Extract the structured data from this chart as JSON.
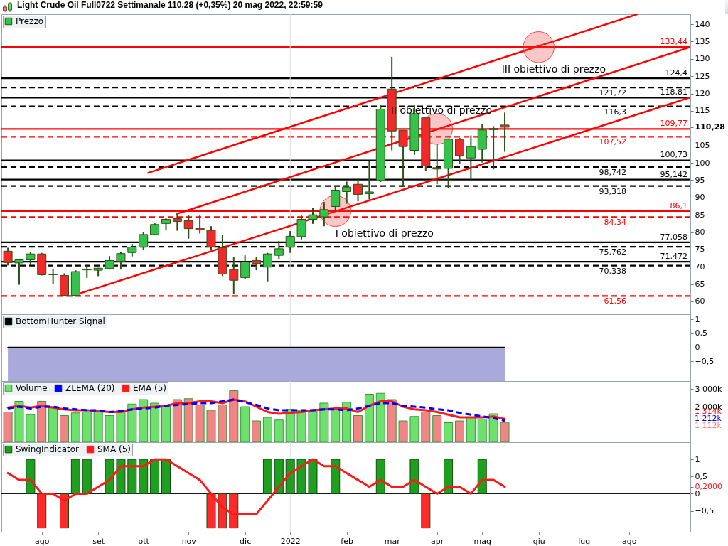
{
  "chart_data": [
    {
      "type": "candlestick",
      "title": "Light Crude Oil Full0722 Settimanale 110,28 (+0,35%) 20 mag 2022, 22:59:59",
      "x": [
        "2021-07-12",
        "2021-07-19",
        "2021-07-26",
        "2021-08-02",
        "2021-08-09",
        "2021-08-16",
        "2021-08-23",
        "2021-08-30",
        "2021-09-06",
        "2021-09-13",
        "2021-09-20",
        "2021-09-27",
        "2021-10-04",
        "2021-10-11",
        "2021-10-18",
        "2021-10-25",
        "2021-11-01",
        "2021-11-08",
        "2021-11-15",
        "2021-11-22",
        "2021-11-29",
        "2021-12-06",
        "2021-12-13",
        "2021-12-20",
        "2021-12-27",
        "2022-01-03",
        "2022-01-10",
        "2022-01-17",
        "2022-01-24",
        "2022-01-31",
        "2022-02-07",
        "2022-02-14",
        "2022-02-21",
        "2022-02-28",
        "2022-03-07",
        "2022-03-14",
        "2022-03-21",
        "2022-03-28",
        "2022-04-04",
        "2022-04-11",
        "2022-04-18",
        "2022-04-25",
        "2022-05-02",
        "2022-05-09",
        "2022-05-16"
      ],
      "series": [
        {
          "name": "Prezzo",
          "color": "#2a5216",
          "ohlc": [
            [
              74.5,
              75.5,
              70.4,
              71.2
            ],
            [
              71.1,
              72.1,
              64.8,
              72.0
            ],
            [
              72.0,
              74.2,
              70.4,
              73.7
            ],
            [
              73.7,
              74.0,
              67.5,
              67.7
            ],
            [
              67.7,
              69.4,
              64.9,
              67.9
            ],
            [
              67.5,
              68.1,
              61.56,
              61.7
            ],
            [
              61.7,
              69.0,
              61.6,
              68.6
            ],
            [
              69.1,
              70.4,
              66.8,
              69.3
            ],
            [
              69.0,
              69.7,
              67.3,
              69.6
            ],
            [
              69.5,
              73.1,
              69.2,
              71.8
            ],
            [
              71.6,
              74.2,
              69.2,
              73.8
            ],
            [
              74.1,
              76.6,
              73.0,
              75.7
            ],
            [
              75.7,
              80.1,
              74.8,
              79.3
            ],
            [
              79.3,
              82.6,
              79.2,
              82.2
            ],
            [
              82.5,
              84.1,
              80.7,
              83.7
            ],
            [
              83.9,
              85.3,
              80.4,
              83.1
            ],
            [
              83.3,
              84.8,
              78.1,
              81.0
            ],
            [
              81.1,
              84.8,
              79.6,
              80.7
            ],
            [
              80.5,
              81.7,
              74.8,
              75.7
            ],
            [
              75.5,
              79.1,
              67.3,
              67.9
            ],
            [
              69.2,
              72.9,
              62.1,
              66.1
            ],
            [
              66.9,
              73.3,
              66.4,
              71.4
            ],
            [
              71.8,
              72.9,
              69.0,
              70.9
            ],
            [
              69.9,
              74.0,
              65.8,
              73.7
            ],
            [
              73.3,
              77.4,
              72.3,
              75.2
            ],
            [
              75.7,
              80.3,
              74.0,
              78.8
            ],
            [
              78.7,
              84.8,
              77.9,
              83.7
            ],
            [
              83.7,
              87.0,
              82.4,
              85.0
            ],
            [
              84.4,
              88.7,
              81.7,
              86.5
            ],
            [
              87.4,
              93.1,
              86.1,
              92.1
            ],
            [
              91.7,
              94.6,
              88.2,
              93.0
            ],
            [
              93.8,
              95.6,
              88.9,
              90.9
            ],
            [
              91.1,
              100.5,
              89.4,
              91.6
            ],
            [
              94.9,
              116.6,
              94.5,
              115.5
            ],
            [
              121.3,
              130.6,
              103.6,
              109.2
            ],
            [
              109.4,
              109.4,
              93.3,
              104.7
            ],
            [
              103.6,
              116.6,
              102.3,
              114.2
            ],
            [
              113.0,
              113.0,
              97.7,
              99.1
            ],
            [
              98.6,
              105.3,
              93.8,
              98.2
            ],
            [
              98.4,
              107.0,
              92.8,
              106.8
            ],
            [
              106.8,
              107.2,
              99.7,
              102.1
            ],
            [
              101.4,
              107.9,
              95.1,
              104.7
            ],
            [
              103.9,
              111.3,
              100.1,
              109.5
            ],
            [
              109.6,
              110.6,
              98.1,
              109.9
            ],
            [
              110.9,
              114.5,
              103.2,
              110.28
            ]
          ],
          "colors": [
            "#f02a2a",
            "#34c24a",
            "#34c24a",
            "#f02a2a",
            "#34c24a",
            "#f02a2a",
            "#34c24a",
            "#34c24a",
            "#34c24a",
            "#34c24a",
            "#34c24a",
            "#34c24a",
            "#34c24a",
            "#34c24a",
            "#34c24a",
            "#f02a2a",
            "#f02a2a",
            "#f02a2a",
            "#f02a2a",
            "#f02a2a",
            "#f02a2a",
            "#34c24a",
            "#f02a2a",
            "#34c24a",
            "#34c24a",
            "#34c24a",
            "#34c24a",
            "#34c24a",
            "#34c24a",
            "#34c24a",
            "#34c24a",
            "#f02a2a",
            "#34c24a",
            "#34c24a",
            "#f02a2a",
            "#f02a2a",
            "#34c24a",
            "#f02a2a",
            "#f02a2a",
            "#34c24a",
            "#f02a2a",
            "#34c24a",
            "#34c24a",
            "#34c24a",
            "#f02a2a"
          ]
        },
        {
          "type": "line",
          "x": [
            "2021-08-21",
            "2022-09-08"
          ],
          "values": [
            61.6,
            118.9
          ],
          "color": "#ff0000"
        },
        {
          "type": "line",
          "x": [
            "2021-10-25",
            "2022-09-08"
          ],
          "values": [
            85.3,
            133.4
          ],
          "color": "#ff0000"
        },
        {
          "type": "line",
          "x": [
            "2021-10-07",
            "2022-08-06"
          ],
          "values": [
            97.1,
            142.9
          ],
          "color": "#ff0000"
        },
        {
          "type": "scatter",
          "x": [
            "2022-01-31",
            "2022-04-04",
            "2022-06-06"
          ],
          "values": [
            86.1,
            109.8,
            133.4
          ],
          "color": "#ee3333",
          "marker": "circle"
        }
      ],
      "xlim": [
        "2021-07-08",
        "2022-09-08"
      ],
      "ylim": [
        56.3,
        142.9
      ],
      "yticks": [
        60,
        65,
        70,
        75,
        80,
        85,
        90,
        95,
        100,
        105,
        {
          "value": 110.28,
          "label": "110,28"
        },
        115,
        120,
        125,
        130,
        135,
        140
      ],
      "tick_labels": "y",
      "legend": "top left",
      "ref_lines": [
        {
          "axis": "y",
          "value": 133.44,
          "label": "133,44",
          "color": "#ff0000",
          "line_style": "solid"
        },
        {
          "axis": "y",
          "value": 124.4,
          "label": "124,4",
          "color": "#000000",
          "line_style": "solid"
        },
        {
          "axis": "y",
          "value": 121.72,
          "label": "121,72",
          "color": "#000000",
          "line_style": "dashed"
        },
        {
          "axis": "y",
          "value": 118.81,
          "label": "118,81",
          "color": "#000000",
          "line_style": "solid"
        },
        {
          "axis": "y",
          "value": 116.3,
          "label": "116,3",
          "color": "#000000",
          "line_style": "dashed"
        },
        {
          "axis": "y",
          "value": 109.77,
          "label": "109,77",
          "color": "#ff0000",
          "line_style": "solid"
        },
        {
          "axis": "y",
          "value": 107.52,
          "label": "107,52",
          "color": "#ff0000",
          "line_style": "dashed"
        },
        {
          "axis": "y",
          "value": 100.73,
          "label": "100,73",
          "color": "#000000",
          "line_style": "solid"
        },
        {
          "axis": "y",
          "value": 98.742,
          "label": "98,742",
          "color": "#000000",
          "line_style": "dashed"
        },
        {
          "axis": "y",
          "value": 95.142,
          "label": "95,142",
          "color": "#000000",
          "line_style": "solid"
        },
        {
          "axis": "y",
          "value": 93.318,
          "label": "93,318",
          "color": "#000000",
          "line_style": "dashed"
        },
        {
          "axis": "y",
          "value": 86.1,
          "label": "86,1",
          "color": "#ff0000",
          "line_style": "solid"
        },
        {
          "axis": "y",
          "value": 84.34,
          "label": "84,34",
          "color": "#ff0000",
          "line_style": "dashed"
        },
        {
          "axis": "y",
          "value": 77.058,
          "label": "77,058",
          "color": "#000000",
          "line_style": "solid"
        },
        {
          "axis": "y",
          "value": 75.762,
          "label": "75,762",
          "color": "#000000",
          "line_style": "dashed"
        },
        {
          "axis": "y",
          "value": 71.472,
          "label": "71,472",
          "color": "#000000",
          "line_style": "solid"
        },
        {
          "axis": "y",
          "value": 70.338,
          "label": "70,338",
          "color": "#000000",
          "line_style": "dashed"
        },
        {
          "axis": "y",
          "value": 61.56,
          "label": "61,56",
          "color": "#ff0000",
          "line_style": "dashed"
        },
        {
          "axis": "x",
          "value": "2022-01-03",
          "color": "#dddddd"
        }
      ],
      "annotations": [
        {
          "text": "I obiettivo di prezzo",
          "x": "2022-01-31",
          "y": 86.1
        },
        {
          "text": "II obiettivo di prezzo",
          "x": "2022-04-04",
          "y": 109.8
        },
        {
          "text": "III obiettivo di prezzo",
          "x": "2022-06-06",
          "y": 133.4
        }
      ]
    },
    {
      "type": "line",
      "x": [
        "2021-07-12",
        "2021-07-19",
        "2021-07-26",
        "2021-08-02",
        "2021-08-09",
        "2021-08-16",
        "2021-08-23",
        "2021-08-30",
        "2021-09-06",
        "2021-09-13",
        "2021-09-20",
        "2021-09-27",
        "2021-10-04",
        "2021-10-11",
        "2021-10-18",
        "2021-10-25",
        "2021-11-01",
        "2021-11-08",
        "2021-11-15",
        "2021-11-22",
        "2021-11-29",
        "2021-12-06",
        "2021-12-13",
        "2021-12-20",
        "2021-12-27",
        "2022-01-03",
        "2022-01-10",
        "2022-01-17",
        "2022-01-24",
        "2022-01-31",
        "2022-02-07",
        "2022-02-14",
        "2022-02-21",
        "2022-02-28",
        "2022-03-07",
        "2022-03-14",
        "2022-03-21",
        "2022-03-28",
        "2022-04-04",
        "2022-04-11",
        "2022-04-18",
        "2022-04-25",
        "2022-05-02",
        "2022-05-09",
        "2022-05-16"
      ],
      "series": [
        {
          "name": "BottomHunter Signal",
          "color": "#000000",
          "values": [
            0,
            0,
            0,
            0,
            0,
            0,
            0,
            0,
            0,
            0,
            0,
            0,
            0,
            0,
            0,
            0,
            0,
            0,
            0,
            0,
            0,
            0,
            0,
            0,
            0,
            0,
            0,
            0,
            0,
            0,
            0,
            0,
            0,
            0,
            0,
            0,
            0,
            0,
            0,
            0,
            0,
            0,
            0,
            0,
            0
          ],
          "lower": [
            -1.2,
            -1.2,
            -1.2,
            -1.2,
            -1.2,
            -1.2,
            -1.2,
            -1.2,
            -1.2,
            -1.2,
            -1.2,
            -1.2,
            -1.2,
            -1.2,
            -1.2,
            -1.2,
            -1.2,
            -1.2,
            -1.2,
            -1.2,
            -1.2,
            -1.2,
            -1.2,
            -1.2,
            -1.2,
            -1.2,
            -1.2,
            -1.2,
            -1.2,
            -1.2,
            -1.2,
            -1.2,
            -1.2,
            -1.2,
            -1.2,
            -1.2,
            -1.2,
            -1.2,
            -1.2,
            -1.2,
            -1.2,
            -1.2,
            -1.2,
            -1.2,
            -1.2
          ],
          "upper": [
            0,
            0,
            0,
            0,
            0,
            0,
            0,
            0,
            0,
            0,
            0,
            0,
            0,
            0,
            0,
            0,
            0,
            0,
            0,
            0,
            0,
            0,
            0,
            0,
            0,
            0,
            0,
            0,
            0,
            0,
            0,
            0,
            0,
            0,
            0,
            0,
            0,
            0,
            0,
            0,
            0,
            0,
            0,
            0,
            0
          ]
        }
      ],
      "xlim": [
        "2021-07-08",
        "2022-09-08"
      ],
      "ylim": [
        -1.2,
        1.18
      ],
      "yticks": [
        1,
        {
          "value": 0.5,
          "label": "0,5"
        },
        0,
        {
          "value": -0.5,
          "label": "−0,5"
        }
      ],
      "tick_labels": "y",
      "legend": "top left",
      "ref_lines": [
        {
          "axis": "x",
          "value": "2022-01-03",
          "color": "#dddddd"
        }
      ]
    },
    {
      "type": "bar",
      "x": [
        "2021-07-12",
        "2021-07-19",
        "2021-07-26",
        "2021-08-02",
        "2021-08-09",
        "2021-08-16",
        "2021-08-23",
        "2021-08-30",
        "2021-09-06",
        "2021-09-13",
        "2021-09-20",
        "2021-09-27",
        "2021-10-04",
        "2021-10-11",
        "2021-10-18",
        "2021-10-25",
        "2021-11-01",
        "2021-11-08",
        "2021-11-15",
        "2021-11-22",
        "2021-11-29",
        "2021-12-06",
        "2021-12-13",
        "2021-12-20",
        "2021-12-27",
        "2022-01-03",
        "2022-01-10",
        "2022-01-17",
        "2022-01-24",
        "2022-01-31",
        "2022-02-07",
        "2022-02-14",
        "2022-02-21",
        "2022-02-28",
        "2022-03-07",
        "2022-03-14",
        "2022-03-21",
        "2022-03-28",
        "2022-04-04",
        "2022-04-11",
        "2022-04-18",
        "2022-04-25",
        "2022-05-02",
        "2022-05-09",
        "2022-05-16"
      ],
      "series": [
        {
          "name": "Volume",
          "color": "#3a9a3a",
          "values": [
            1700,
            2300,
            1550,
            2300,
            2000,
            1500,
            1650,
            1700,
            1800,
            1500,
            1800,
            2150,
            2400,
            2200,
            2100,
            2400,
            2450,
            2100,
            1800,
            2100,
            2900,
            2000,
            1200,
            1400,
            1250,
            1850,
            1800,
            1800,
            2200,
            1900,
            2250,
            1500,
            2700,
            2750,
            2400,
            1200,
            1450,
            1700,
            1500,
            1100,
            1200,
            1400,
            1300,
            1600,
            1112
          ],
          "colors": [
            "#f08585",
            "#6ee06e",
            "#6ee06e",
            "#f08585",
            "#6ee06e",
            "#f08585",
            "#6ee06e",
            "#6ee06e",
            "#6ee06e",
            "#6ee06e",
            "#6ee06e",
            "#6ee06e",
            "#6ee06e",
            "#6ee06e",
            "#6ee06e",
            "#f08585",
            "#f08585",
            "#f08585",
            "#f08585",
            "#f08585",
            "#f08585",
            "#6ee06e",
            "#f08585",
            "#6ee06e",
            "#6ee06e",
            "#6ee06e",
            "#6ee06e",
            "#6ee06e",
            "#6ee06e",
            "#6ee06e",
            "#6ee06e",
            "#f08585",
            "#6ee06e",
            "#6ee06e",
            "#f08585",
            "#f08585",
            "#6ee06e",
            "#f08585",
            "#f08585",
            "#6ee06e",
            "#f08585",
            "#6ee06e",
            "#6ee06e",
            "#6ee06e",
            "#f08585"
          ]
        },
        {
          "name": "ZLEMA (20)",
          "type": "line",
          "color": "#0000ff",
          "line_style": "dashed",
          "values": [
            1900,
            2000,
            1900,
            2000,
            2000,
            1900,
            1850,
            1800,
            1800,
            1700,
            1750,
            1850,
            1900,
            1950,
            2050,
            2100,
            2150,
            2200,
            2200,
            2300,
            2400,
            2250,
            2100,
            1900,
            1800,
            1800,
            1800,
            1800,
            1850,
            1850,
            1800,
            1900,
            2050,
            2200,
            2200,
            2050,
            2000,
            1950,
            1850,
            1800,
            1650,
            1550,
            1450,
            1350,
            1212
          ]
        },
        {
          "name": "EMA (5)",
          "type": "line",
          "color": "#ff1a1a",
          "values": [
            1950,
            2050,
            1950,
            2050,
            1950,
            1850,
            1800,
            1800,
            1750,
            1700,
            1700,
            1850,
            1950,
            2000,
            2050,
            2200,
            2200,
            2300,
            2300,
            2200,
            2400,
            2300,
            2000,
            1700,
            1600,
            1650,
            1700,
            1800,
            1850,
            1900,
            1900,
            1700,
            2050,
            2300,
            2300,
            2000,
            1850,
            1800,
            1700,
            1550,
            1400,
            1400,
            1400,
            1450,
            1314
          ]
        }
      ],
      "xlim": [
        "2021-07-08",
        "2022-09-08"
      ],
      "ylim": [
        0,
        3440
      ],
      "yticks": [
        {
          "value": 3000,
          "label": "3 000k"
        },
        {
          "value": 2000,
          "label": "2 000k"
        }
      ],
      "tick_labels": "y",
      "legend": "top left",
      "ref_lines": [
        {
          "axis": "x",
          "value": "2022-01-03",
          "color": "#dddddd"
        }
      ],
      "annotations": [
        "1 314k",
        "1 212k",
        "1 112k"
      ]
    },
    {
      "type": "bar",
      "x": [
        "2021-07-12",
        "2021-07-19",
        "2021-07-26",
        "2021-08-02",
        "2021-08-09",
        "2021-08-16",
        "2021-08-23",
        "2021-08-30",
        "2021-09-06",
        "2021-09-13",
        "2021-09-20",
        "2021-09-27",
        "2021-10-04",
        "2021-10-11",
        "2021-10-18",
        "2021-10-25",
        "2021-11-01",
        "2021-11-08",
        "2021-11-15",
        "2021-11-22",
        "2021-11-29",
        "2021-12-06",
        "2021-12-13",
        "2021-12-20",
        "2021-12-27",
        "2022-01-03",
        "2022-01-10",
        "2022-01-17",
        "2022-01-24",
        "2022-01-31",
        "2022-02-07",
        "2022-02-14",
        "2022-02-21",
        "2022-02-28",
        "2022-03-07",
        "2022-03-14",
        "2022-03-21",
        "2022-03-28",
        "2022-04-04",
        "2022-04-11",
        "2022-04-18",
        "2022-04-25",
        "2022-05-02",
        "2022-05-09",
        "2022-05-16"
      ],
      "series": [
        {
          "name": "SwingIndicator",
          "color": "#0e4d0e",
          "values": [
            null,
            null,
            1,
            -1,
            null,
            -1,
            1,
            1,
            null,
            1,
            1,
            1,
            1,
            1,
            1,
            null,
            null,
            null,
            -1,
            -1,
            -1,
            null,
            null,
            1,
            1,
            1,
            1,
            1,
            null,
            1,
            null,
            null,
            null,
            1,
            null,
            null,
            1,
            -1,
            null,
            1,
            null,
            null,
            1,
            null,
            null
          ],
          "colors": [
            null,
            null,
            "#1f9f1f",
            "#ff2a2a",
            null,
            "#ff2a2a",
            "#1f9f1f",
            "#1f9f1f",
            null,
            "#1f9f1f",
            "#1f9f1f",
            "#1f9f1f",
            "#1f9f1f",
            "#1f9f1f",
            "#1f9f1f",
            null,
            null,
            null,
            "#ff2a2a",
            "#ff2a2a",
            "#ff2a2a",
            null,
            null,
            "#1f9f1f",
            "#1f9f1f",
            "#1f9f1f",
            "#1f9f1f",
            "#1f9f1f",
            null,
            "#1f9f1f",
            null,
            null,
            null,
            "#1f9f1f",
            null,
            null,
            "#1f9f1f",
            "#ff2a2a",
            null,
            "#1f9f1f",
            null,
            null,
            "#1f9f1f",
            null,
            null
          ]
        },
        {
          "name": "SMA (5)",
          "type": "line",
          "color": "#ff1a1a",
          "values": [
            0.6,
            0.4,
            0.4,
            0,
            0,
            -0.2,
            0,
            0,
            0.2,
            0.4,
            0.8,
            0.8,
            0.8,
            1,
            1,
            0.8,
            0.6,
            0.4,
            0,
            -0.4,
            -0.6,
            -0.6,
            -0.6,
            -0.2,
            0.2,
            0.6,
            0.8,
            1,
            0.8,
            0.8,
            0.6,
            0.4,
            0.2,
            0.4,
            0.2,
            0.2,
            0.4,
            0.2,
            0,
            0.2,
            0.2,
            0,
            0.4,
            0.4,
            0.2
          ]
        }
      ],
      "xlim": [
        "2021-07-08",
        "2022-09-08"
      ],
      "ylim": [
        -1.11,
        1.5
      ],
      "yticks": [
        1,
        {
          "value": 0.5,
          "label": "0,5"
        },
        {
          "value": 0.2,
          "label": "0,2000"
        },
        0,
        {
          "value": -0.5,
          "label": "−0,5"
        }
      ],
      "xticks": [
        {
          "value": "2021-08-02",
          "label": "ago"
        },
        {
          "value": "2021-09-06",
          "label": "set"
        },
        {
          "value": "2021-10-04",
          "label": "ott"
        },
        {
          "value": "2021-11-01",
          "label": "nov"
        },
        {
          "value": "2021-12-06",
          "label": "dic"
        },
        {
          "value": "2022-01-03",
          "label": "2022"
        },
        {
          "value": "2022-02-07",
          "label": "feb"
        },
        {
          "value": "2022-03-07",
          "label": "mar"
        },
        {
          "value": "2022-04-04",
          "label": "apr"
        },
        {
          "value": "2022-05-02",
          "label": "mag"
        },
        {
          "value": "2022-06-06",
          "label": "giu"
        },
        {
          "value": "2022-07-04",
          "label": "lug"
        },
        {
          "value": "2022-08-01",
          "label": "ago"
        }
      ],
      "legend": "top left",
      "ref_lines": [
        {
          "axis": "y",
          "value": 0,
          "color": "#000000"
        },
        {
          "axis": "x",
          "value": "2022-01-03",
          "color": "#dddddd"
        }
      ]
    }
  ]
}
